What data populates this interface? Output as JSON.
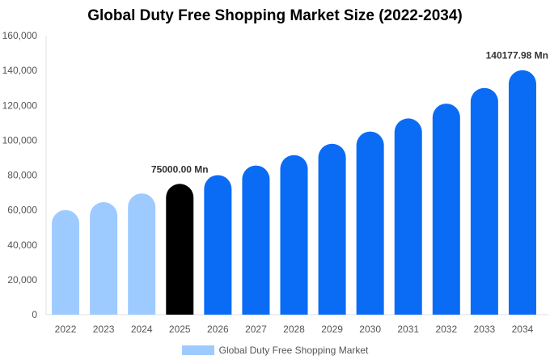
{
  "chart_data": {
    "type": "bar",
    "title": "Global Duty Free Shopping Market Size (2022-2034)",
    "categories": [
      "2022",
      "2023",
      "2024",
      "2025",
      "2026",
      "2027",
      "2028",
      "2029",
      "2030",
      "2031",
      "2032",
      "2033",
      "2034"
    ],
    "series": [
      {
        "name": "Global Duty Free Shopping Market",
        "values": [
          60000,
          64500,
          69500,
          75000,
          80000,
          85500,
          91500,
          98000,
          105000,
          112500,
          121000,
          130000,
          140177.98
        ]
      }
    ],
    "ylim": [
      0,
      160000
    ],
    "yticks": [
      "0",
      "20,000",
      "40,000",
      "60,000",
      "80,000",
      "100,000",
      "120,000",
      "140,000",
      "160,000"
    ],
    "data_labels": [
      {
        "index": 3,
        "text": "75000.00 Mn"
      },
      {
        "index": 12,
        "text": "140177.98 Mn"
      }
    ],
    "colors": {
      "historical": "#9ecbff",
      "current": "#000000",
      "forecast": "#0a6cf5",
      "legend": "#9ecbff"
    },
    "historical_indices": [
      0,
      1,
      2
    ],
    "current_index": 3,
    "grid": false,
    "legend_position": "bottom"
  }
}
